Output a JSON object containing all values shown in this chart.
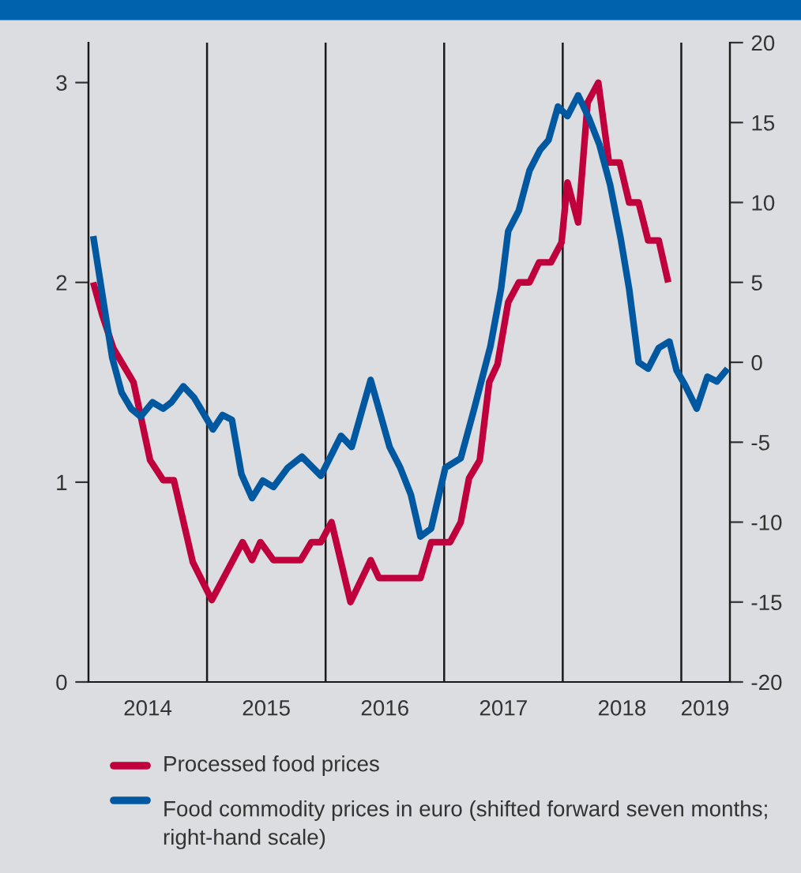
{
  "chart_data": {
    "type": "line",
    "xlim": [
      2014,
      2019.41
    ],
    "xticks": [
      {
        "value": 2014.5,
        "label": "2014"
      },
      {
        "value": 2015.5,
        "label": "2015"
      },
      {
        "value": 2016.5,
        "label": "2016"
      },
      {
        "value": 2017.5,
        "label": "2017"
      },
      {
        "value": 2018.5,
        "label": "2018"
      },
      {
        "value": 2019.2,
        "label": "2019"
      }
    ],
    "ylim": [
      0,
      3.2
    ],
    "yticks": [
      0,
      1,
      2,
      3
    ],
    "y2lim": [
      -20,
      20
    ],
    "y2ticks": [
      -20,
      -15,
      -10,
      -5,
      0,
      5,
      10,
      15,
      20
    ],
    "ref_lines": [
      {
        "axis": "x",
        "value": 2015,
        "color": "#1a1a1a"
      },
      {
        "axis": "x",
        "value": 2016,
        "color": "#1a1a1a"
      },
      {
        "axis": "x",
        "value": 2017,
        "color": "#1a1a1a"
      },
      {
        "axis": "x",
        "value": 2018,
        "color": "#1a1a1a"
      },
      {
        "axis": "x",
        "value": 2019,
        "color": "#1a1a1a"
      }
    ],
    "grid": false,
    "legend": "bottom",
    "marker": "none",
    "line_style": "solid",
    "series": [
      {
        "name": "Processed food prices",
        "color": "#c0003c",
        "x": [
          2014.04,
          2014.12,
          2014.21,
          2014.38,
          2014.52,
          2014.63,
          2014.72,
          2014.88,
          2015.04,
          2015.3,
          2015.38,
          2015.45,
          2015.56,
          2015.79,
          2015.88,
          2015.96,
          2016.05,
          2016.21,
          2016.38,
          2016.45,
          2016.8,
          2016.89,
          2017.05,
          2017.14,
          2017.21,
          2017.3,
          2017.38,
          2017.45,
          2017.54,
          2017.63,
          2017.72,
          2017.8,
          2017.9,
          2017.99,
          2018.04,
          2018.13,
          2018.21,
          2018.3,
          2018.39,
          2018.48,
          2018.56,
          2018.64,
          2018.72,
          2018.81,
          2018.89
        ],
        "values": [
          2.0,
          1.83,
          1.67,
          1.5,
          1.11,
          1.01,
          1.01,
          0.6,
          0.41,
          0.7,
          0.61,
          0.7,
          0.61,
          0.61,
          0.7,
          0.7,
          0.8,
          0.4,
          0.61,
          0.52,
          0.52,
          0.7,
          0.7,
          0.8,
          1.02,
          1.11,
          1.5,
          1.59,
          1.9,
          2.0,
          2.0,
          2.1,
          2.1,
          2.2,
          2.5,
          2.3,
          2.9,
          3.0,
          2.6,
          2.6,
          2.4,
          2.4,
          2.21,
          2.21,
          2.0
        ]
      },
      {
        "name": "Food commodity prices in euro (shifted forward seven months; right-hand scale)",
        "color": "#0058a0",
        "axis": "y2",
        "x": [
          2014.04,
          2014.2,
          2014.28,
          2014.36,
          2014.44,
          2014.54,
          2014.63,
          2014.7,
          2014.8,
          2014.89,
          2015.05,
          2015.13,
          2015.21,
          2015.29,
          2015.38,
          2015.47,
          2015.56,
          2015.68,
          2015.8,
          2015.96,
          2016.13,
          2016.22,
          2016.38,
          2016.54,
          2016.63,
          2016.72,
          2016.8,
          2016.89,
          2017.01,
          2017.14,
          2017.25,
          2017.39,
          2017.48,
          2017.54,
          2017.63,
          2017.72,
          2017.81,
          2017.88,
          2017.96,
          2018.04,
          2018.13,
          2018.22,
          2018.31,
          2018.4,
          2018.49,
          2018.56,
          2018.64,
          2018.72,
          2018.81,
          2018.9,
          2018.96,
          2019.03,
          2019.13,
          2019.22,
          2019.3,
          2019.39
        ],
        "values": [
          7.9,
          0.3,
          -1.9,
          -2.9,
          -3.4,
          -2.5,
          -2.9,
          -2.5,
          -1.5,
          -2.2,
          -4.2,
          -3.3,
          -3.6,
          -7.0,
          -8.5,
          -7.4,
          -7.8,
          -6.6,
          -5.9,
          -7.1,
          -4.6,
          -5.3,
          -1.1,
          -5.3,
          -6.6,
          -8.3,
          -10.9,
          -10.4,
          -6.6,
          -6.0,
          -3.0,
          1.0,
          4.6,
          8.2,
          9.5,
          12.0,
          13.3,
          13.9,
          16.0,
          15.4,
          16.7,
          15.3,
          13.6,
          11.1,
          7.7,
          4.6,
          0.0,
          -0.4,
          0.9,
          1.3,
          -0.5,
          -1.4,
          -2.9,
          -0.9,
          -1.2,
          -0.4
        ]
      }
    ]
  }
}
